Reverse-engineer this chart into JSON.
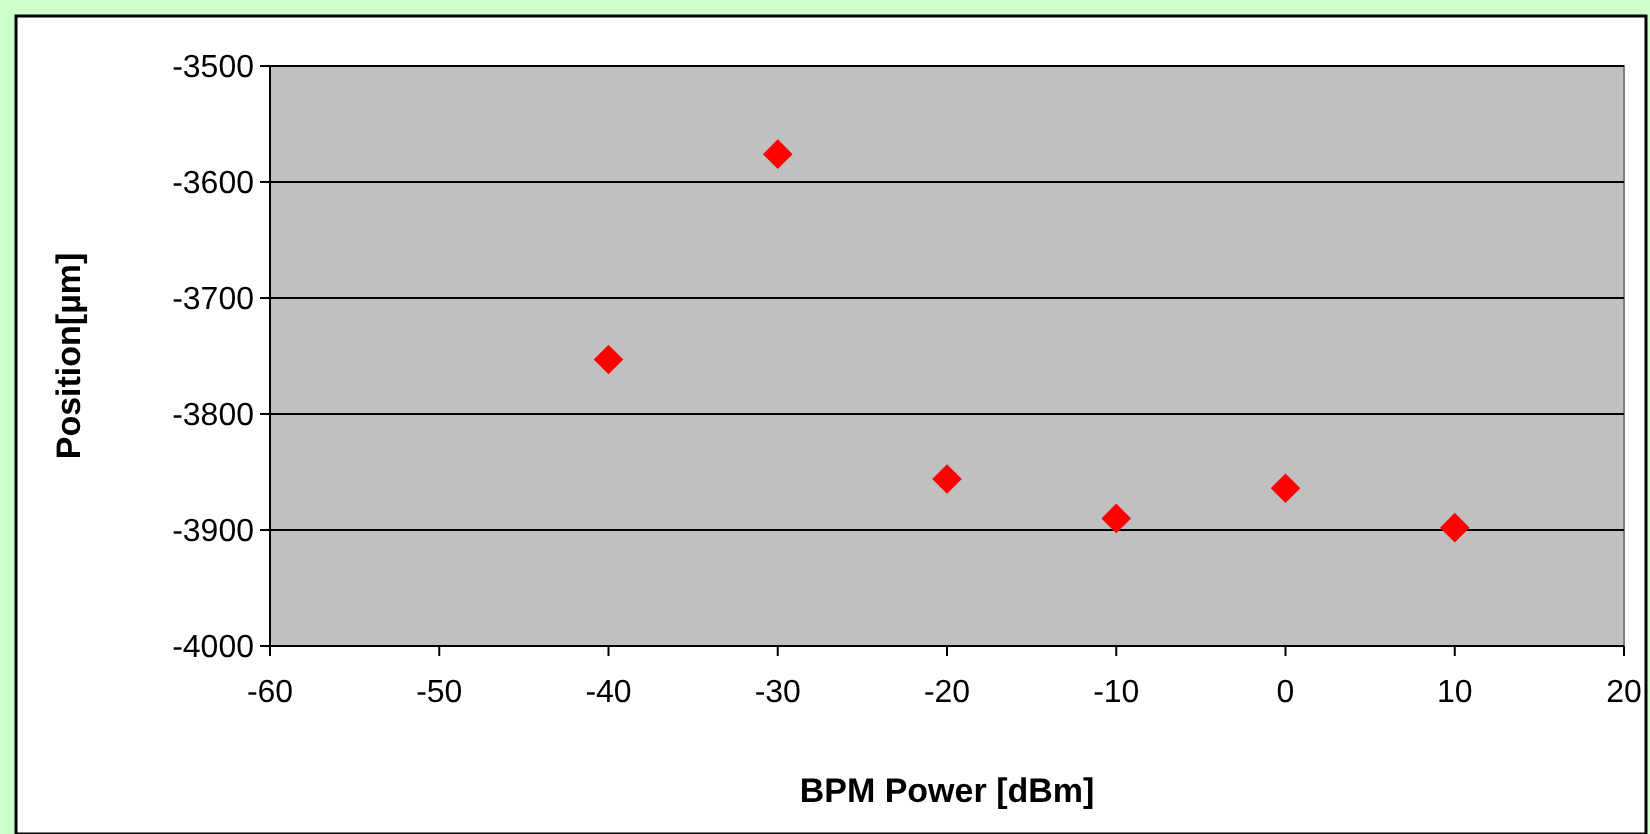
{
  "chart_data": {
    "type": "scatter",
    "xlabel": "BPM Power [dBm]",
    "ylabel": "Position[µm]",
    "x": [
      -40,
      -30,
      -20,
      -10,
      0,
      10
    ],
    "series": [
      {
        "color": "#ff0000",
        "values": [
          -3753,
          -3576,
          -3856,
          -3890,
          -3864,
          -3898
        ]
      }
    ],
    "xlim": [
      -60,
      20
    ],
    "xticks": [
      -60,
      -50,
      -40,
      -30,
      -20,
      -10,
      0,
      10,
      20
    ],
    "ylim": [
      -4000,
      -3500
    ],
    "yticks": [
      -4000,
      -3900,
      -3800,
      -3700,
      -3600,
      -3500
    ],
    "grid": "y",
    "marker": "diamond"
  }
}
